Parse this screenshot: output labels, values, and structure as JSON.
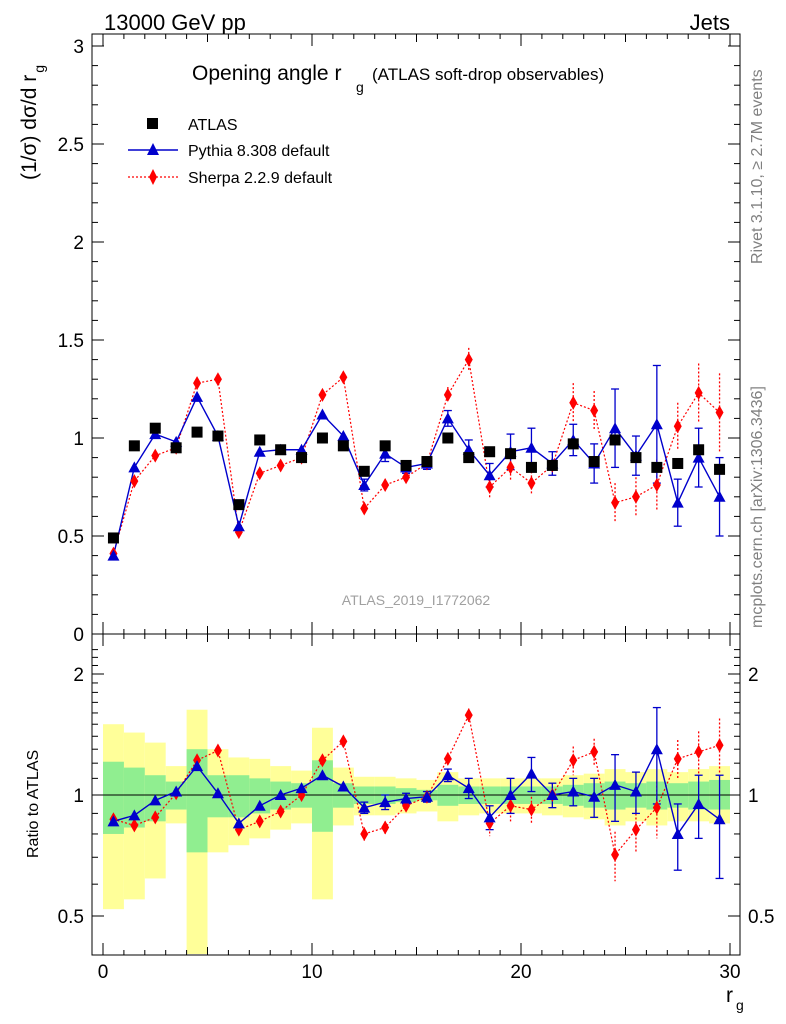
{
  "header": {
    "left": "13000 GeV pp",
    "right": "Jets",
    "title_main": "Opening angle r",
    "title_sub": "g",
    "title_extra": "(ATLAS soft-drop observables)",
    "side_rivet": "Rivet 3.1.10, ≥ 2.7M events",
    "side_mcplots": "mcplots.cern.ch [arXiv:1306.3436]",
    "analysis_id": "ATLAS_2019_I1772062"
  },
  "axes": {
    "ylabel_main": "(1/σ) dσ/d r",
    "ylabel_main_sub": "g",
    "ylabel_ratio": "Ratio to ATLAS",
    "xlabel": "r",
    "xlabel_sub": "g",
    "main_yticks": [
      "0",
      "0.5",
      "1",
      "1.5",
      "2",
      "2.5",
      "3"
    ],
    "ratio_yticks": [
      "0.5",
      "1",
      "2"
    ],
    "xticks": [
      "0",
      "10",
      "20",
      "30"
    ]
  },
  "legend": [
    {
      "label": "ATLAS",
      "marker": "square",
      "color": "#000000"
    },
    {
      "label": "Pythia 8.308 default",
      "marker": "triangle",
      "color": "#0000cc"
    },
    {
      "label": "Sherpa 2.2.9 default",
      "marker": "diamond",
      "color": "#ff0000"
    }
  ],
  "chart_data": {
    "type": "scatter",
    "x_centers": [
      0.5,
      1.5,
      2.5,
      3.5,
      4.5,
      5.5,
      6.5,
      7.5,
      8.5,
      9.5,
      10.5,
      11.5,
      12.5,
      13.5,
      14.5,
      15.5,
      16.5,
      17.5,
      18.5,
      19.5,
      20.5,
      21.5,
      22.5,
      23.5,
      24.5,
      25.5,
      26.5,
      27.5,
      28.5,
      29.5
    ],
    "xlim": [
      0,
      30
    ],
    "ylim_main": [
      0,
      3
    ],
    "ylim_ratio": [
      0.4,
      2.3
    ],
    "series": [
      {
        "name": "ATLAS",
        "color": "#000000",
        "values": [
          0.49,
          0.96,
          1.05,
          0.95,
          1.03,
          1.01,
          0.66,
          0.99,
          0.94,
          0.9,
          1.0,
          0.96,
          0.83,
          0.96,
          0.86,
          0.88,
          1.0,
          0.9,
          0.93,
          0.92,
          0.85,
          0.86,
          0.97,
          0.88,
          0.99,
          0.9,
          0.85,
          0.87,
          0.94,
          0.84
        ]
      },
      {
        "name": "Pythia 8.308 default",
        "color": "#0000cc",
        "values": [
          0.4,
          0.85,
          1.02,
          0.98,
          1.21,
          1.01,
          0.55,
          0.93,
          0.94,
          0.94,
          1.12,
          1.01,
          0.76,
          0.92,
          0.85,
          0.87,
          1.1,
          0.94,
          0.81,
          0.93,
          0.95,
          0.87,
          0.99,
          0.87,
          1.05,
          0.91,
          1.07,
          0.67,
          0.9,
          0.7
        ],
        "errors": [
          0,
          0,
          0,
          0,
          0,
          0,
          0,
          0,
          0,
          0,
          0,
          0,
          0.03,
          0.04,
          0.03,
          0.03,
          0.04,
          0.05,
          0.06,
          0.09,
          0.1,
          0.06,
          0.08,
          0.1,
          0.2,
          0.1,
          0.3,
          0.12,
          0.15,
          0.2
        ],
        "ratio": [
          0.86,
          0.89,
          0.97,
          1.02,
          1.18,
          1.01,
          0.85,
          0.94,
          1.0,
          1.04,
          1.12,
          1.05,
          0.93,
          0.96,
          0.98,
          0.99,
          1.12,
          1.04,
          0.88,
          1.0,
          1.13,
          1.0,
          1.02,
          0.99,
          1.06,
          1.02,
          1.3,
          0.8,
          0.95,
          0.87
        ],
        "ratio_errors": [
          0,
          0,
          0,
          0,
          0,
          0,
          0,
          0,
          0,
          0,
          0,
          0,
          0.03,
          0.04,
          0.03,
          0.03,
          0.04,
          0.06,
          0.06,
          0.1,
          0.11,
          0.07,
          0.08,
          0.11,
          0.2,
          0.12,
          0.35,
          0.15,
          0.17,
          0.25
        ]
      },
      {
        "name": "Sherpa 2.2.9 default",
        "color": "#ff0000",
        "values": [
          0.41,
          0.78,
          0.91,
          0.95,
          1.28,
          1.3,
          0.52,
          0.82,
          0.86,
          0.9,
          1.22,
          1.31,
          0.64,
          0.76,
          0.8,
          0.87,
          1.22,
          1.4,
          0.75,
          0.85,
          0.77,
          0.86,
          1.18,
          1.14,
          0.67,
          0.7,
          0.76,
          1.06,
          1.23,
          1.13
        ],
        "errors": [
          0,
          0,
          0,
          0,
          0,
          0,
          0,
          0,
          0,
          0,
          0,
          0,
          0.03,
          0.03,
          0.03,
          0.03,
          0.04,
          0.06,
          0.06,
          0.07,
          0.06,
          0.06,
          0.1,
          0.1,
          0.1,
          0.1,
          0.13,
          0.12,
          0.15,
          0.2
        ],
        "ratio": [
          0.87,
          0.84,
          0.88,
          1.01,
          1.22,
          1.29,
          0.82,
          0.86,
          0.91,
          1.0,
          1.22,
          1.36,
          0.8,
          0.83,
          0.94,
          0.99,
          1.23,
          1.58,
          0.85,
          0.94,
          0.92,
          1.0,
          1.22,
          1.28,
          0.71,
          0.82,
          0.93,
          1.23,
          1.28,
          1.33
        ],
        "ratio_errors": [
          0,
          0,
          0,
          0,
          0,
          0,
          0,
          0,
          0,
          0,
          0,
          0,
          0.03,
          0.03,
          0.03,
          0.03,
          0.04,
          0.06,
          0.06,
          0.08,
          0.07,
          0.07,
          0.1,
          0.1,
          0.1,
          0.1,
          0.15,
          0.14,
          0.16,
          0.22
        ]
      }
    ],
    "ratio_bands": {
      "yellow": [
        [
          0.52,
          1.5
        ],
        [
          0.55,
          1.43
        ],
        [
          0.62,
          1.35
        ],
        [
          0.85,
          1.18
        ],
        [
          0.3,
          1.63
        ],
        [
          0.72,
          1.3
        ],
        [
          0.75,
          1.24
        ],
        [
          0.78,
          1.23
        ],
        [
          0.82,
          1.18
        ],
        [
          0.85,
          1.15
        ],
        [
          0.55,
          1.47
        ],
        [
          0.84,
          1.17
        ],
        [
          0.89,
          1.11
        ],
        [
          0.89,
          1.11
        ],
        [
          0.9,
          1.1
        ],
        [
          0.91,
          1.09
        ],
        [
          0.86,
          1.14
        ],
        [
          0.89,
          1.1
        ],
        [
          0.9,
          1.1
        ],
        [
          0.9,
          1.1
        ],
        [
          0.9,
          1.1
        ],
        [
          0.89,
          1.1
        ],
        [
          0.88,
          1.12
        ],
        [
          0.87,
          1.13
        ],
        [
          0.84,
          1.16
        ],
        [
          0.86,
          1.14
        ],
        [
          0.84,
          1.16
        ],
        [
          0.86,
          1.14
        ],
        [
          0.86,
          1.16
        ],
        [
          0.85,
          1.18
        ]
      ],
      "green": [
        [
          0.8,
          1.21
        ],
        [
          0.83,
          1.17
        ],
        [
          0.86,
          1.12
        ],
        [
          0.92,
          1.08
        ],
        [
          0.72,
          1.3
        ],
        [
          0.88,
          1.12
        ],
        [
          0.88,
          1.12
        ],
        [
          0.9,
          1.1
        ],
        [
          0.92,
          1.08
        ],
        [
          0.93,
          1.07
        ],
        [
          0.81,
          1.22
        ],
        [
          0.93,
          1.07
        ],
        [
          0.95,
          1.05
        ],
        [
          0.95,
          1.05
        ],
        [
          0.96,
          1.04
        ],
        [
          0.97,
          1.03
        ],
        [
          0.94,
          1.06
        ],
        [
          0.95,
          1.05
        ],
        [
          0.95,
          1.05
        ],
        [
          0.95,
          1.05
        ],
        [
          0.95,
          1.05
        ],
        [
          0.95,
          1.05
        ],
        [
          0.94,
          1.06
        ],
        [
          0.93,
          1.07
        ],
        [
          0.92,
          1.08
        ],
        [
          0.93,
          1.07
        ],
        [
          0.92,
          1.08
        ],
        [
          0.93,
          1.07
        ],
        [
          0.92,
          1.08
        ],
        [
          0.92,
          1.09
        ]
      ]
    }
  }
}
